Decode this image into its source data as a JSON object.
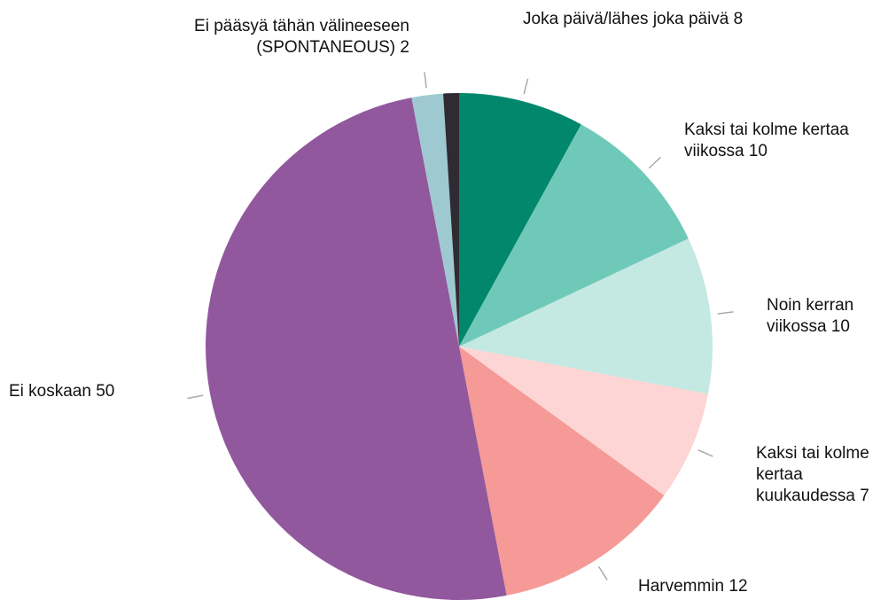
{
  "chart_data": {
    "type": "pie",
    "categories": [
      "Joka päivä/lähes joka päivä",
      "Kaksi tai kolme kertaa viikossa",
      "Noin kerran viikossa",
      "Kaksi tai kolme kertaa kuukaudessa",
      "Harvemmin",
      "Ei koskaan",
      "Ei pääsyä tähän välineeseen (SPONTANEOUS)",
      null
    ],
    "values": [
      8,
      10,
      10,
      7,
      12,
      50,
      2,
      1
    ],
    "colors": [
      "#00876c",
      "#6fc9b8",
      "#c4e8e2",
      "#fcd5d4",
      "#f59a96",
      "#91589d",
      "#9fc9d1",
      "#2f2b33"
    ]
  }
}
